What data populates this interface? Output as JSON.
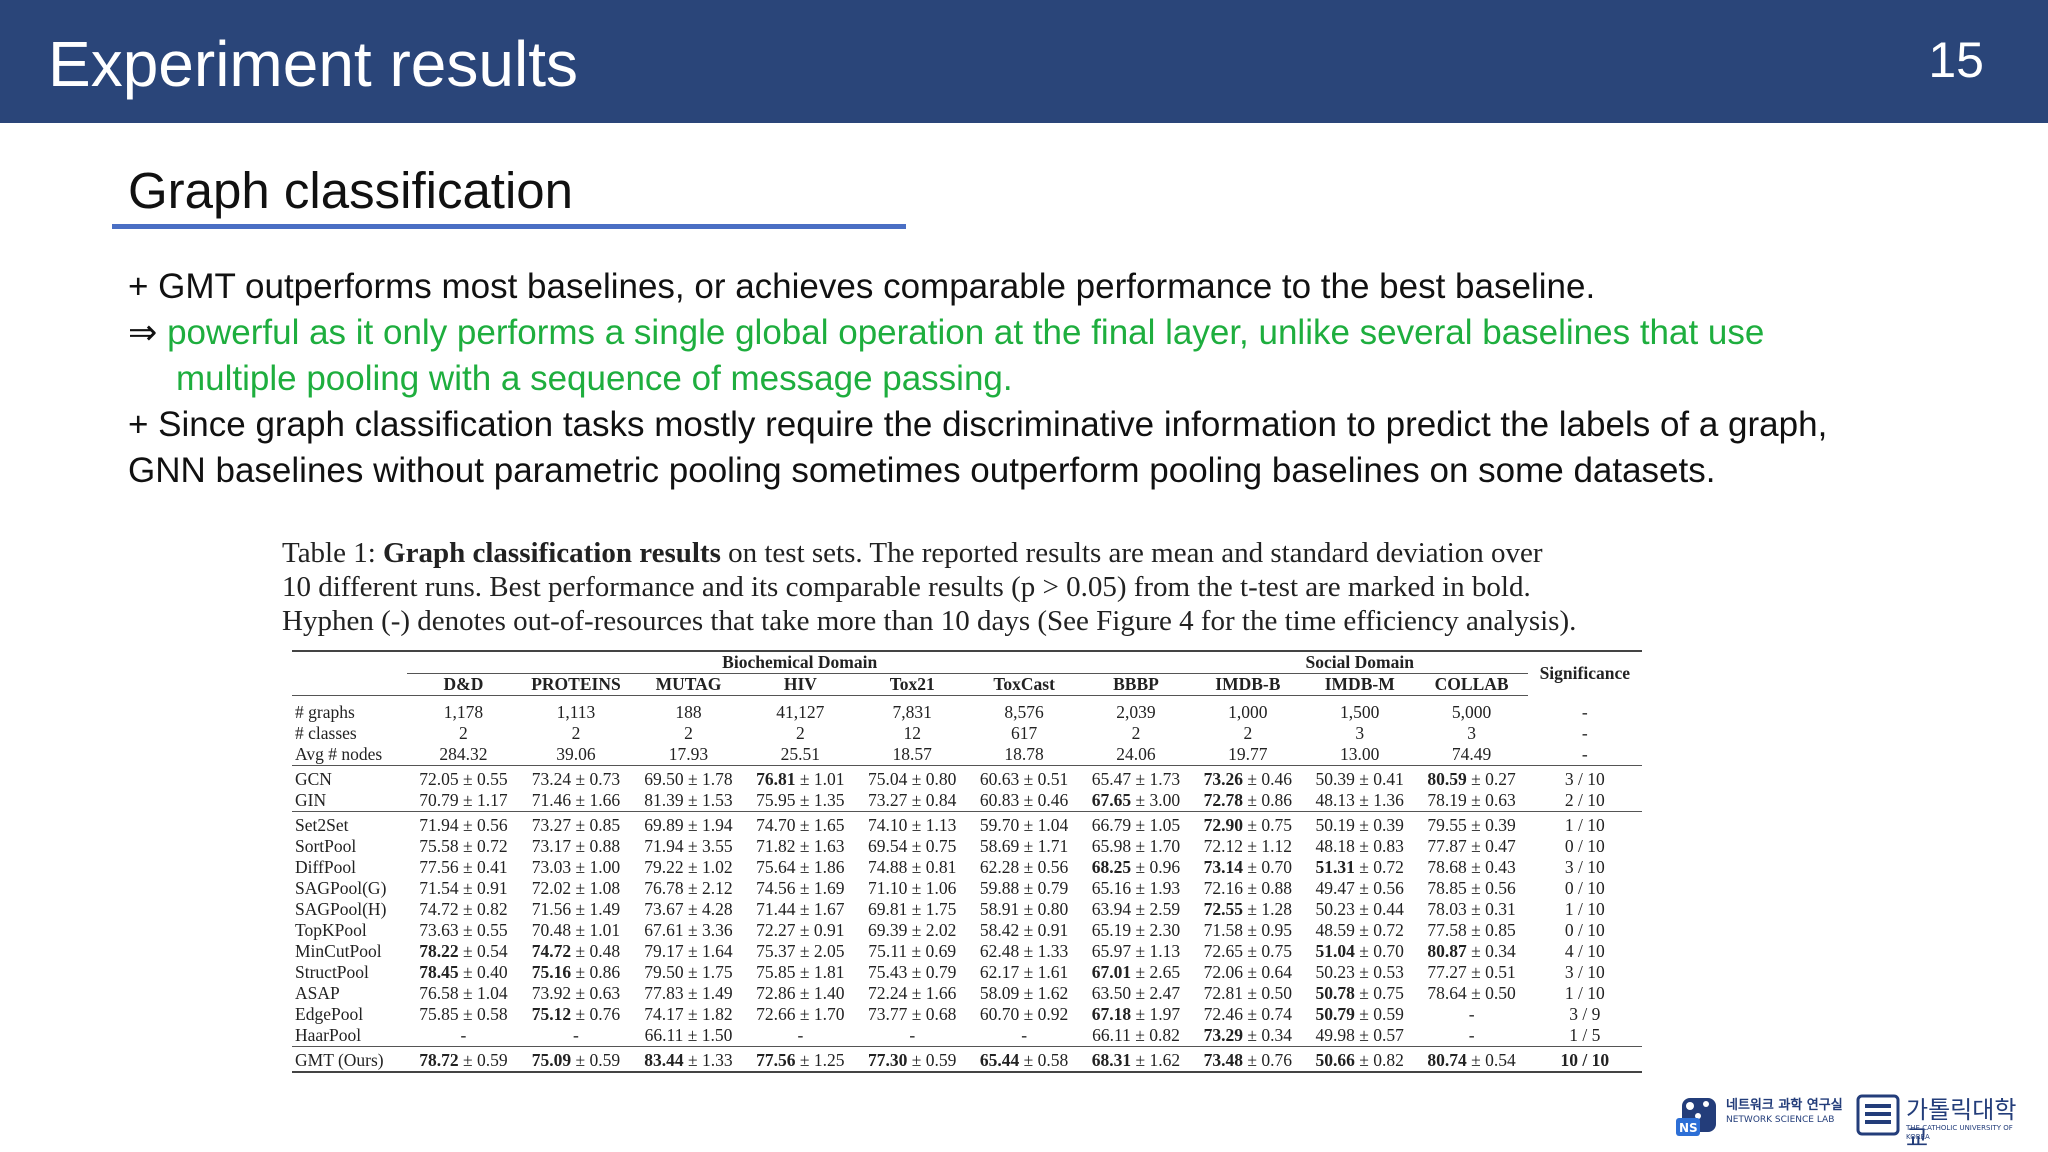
{
  "slide": {
    "title": "Experiment results",
    "page_number": "15"
  },
  "section": {
    "subtitle": "Graph classification"
  },
  "bullets": {
    "line1": "+ GMT outperforms most baselines, or achieves comparable performance to the best baseline.",
    "arrow": "⇒",
    "line2a": "powerful as it only performs a single global operation at the final layer, unlike several baselines that use",
    "line2b": "multiple pooling with a sequence of message passing.",
    "line3a": "+ Since graph classification tasks mostly require the discriminative information to predict the labels of a graph,",
    "line3b": "GNN baselines without parametric pooling sometimes outperform pooling baselines on some datasets."
  },
  "table": {
    "caption_label": "Table 1:",
    "caption_bold": "Graph classification results",
    "caption_rest1": " on test sets. The reported results are mean and standard deviation over",
    "caption_line2": "10 different runs. Best performance and its comparable results (p > 0.05) from the t-test are marked in bold.",
    "caption_line3": "Hyphen (-) denotes out-of-resources that take more than 10 days (See Figure 4 for the time efficiency analysis).",
    "group_bio": "Biochemical Domain",
    "group_social": "Social Domain",
    "significance": "Significance",
    "columns": [
      "D&D",
      "PROTEINS",
      "MUTAG",
      "HIV",
      "Tox21",
      "ToxCast",
      "BBBP",
      "IMDB-B",
      "IMDB-M",
      "COLLAB"
    ],
    "stats_rows": [
      {
        "label": "# graphs",
        "cells": [
          "1,178",
          "1,113",
          "188",
          "41,127",
          "7,831",
          "8,576",
          "2,039",
          "1,000",
          "1,500",
          "5,000"
        ],
        "sig": "-"
      },
      {
        "label": "# classes",
        "cells": [
          "2",
          "2",
          "2",
          "2",
          "12",
          "617",
          "2",
          "2",
          "3",
          "3"
        ],
        "sig": "-"
      },
      {
        "label": "Avg # nodes",
        "cells": [
          "284.32",
          "39.06",
          "17.93",
          "25.51",
          "18.57",
          "18.78",
          "24.06",
          "19.77",
          "13.00",
          "74.49"
        ],
        "sig": "-"
      }
    ],
    "gnn_rows": [
      {
        "label": "GCN",
        "cells": [
          [
            "72.05",
            "0.55",
            0
          ],
          [
            "73.24",
            "0.73",
            0
          ],
          [
            "69.50",
            "1.78",
            0
          ],
          [
            "76.81",
            "1.01",
            1
          ],
          [
            "75.04",
            "0.80",
            0
          ],
          [
            "60.63",
            "0.51",
            0
          ],
          [
            "65.47",
            "1.73",
            0
          ],
          [
            "73.26",
            "0.46",
            1
          ],
          [
            "50.39",
            "0.41",
            0
          ],
          [
            "80.59",
            "0.27",
            1
          ]
        ],
        "sig": "3 / 10"
      },
      {
        "label": "GIN",
        "cells": [
          [
            "70.79",
            "1.17",
            0
          ],
          [
            "71.46",
            "1.66",
            0
          ],
          [
            "81.39",
            "1.53",
            0
          ],
          [
            "75.95",
            "1.35",
            0
          ],
          [
            "73.27",
            "0.84",
            0
          ],
          [
            "60.83",
            "0.46",
            0
          ],
          [
            "67.65",
            "3.00",
            1
          ],
          [
            "72.78",
            "0.86",
            1
          ],
          [
            "48.13",
            "1.36",
            0
          ],
          [
            "78.19",
            "0.63",
            0
          ]
        ],
        "sig": "2 / 10"
      }
    ],
    "pool_rows": [
      {
        "label": "Set2Set",
        "cells": [
          [
            "71.94",
            "0.56",
            0
          ],
          [
            "73.27",
            "0.85",
            0
          ],
          [
            "69.89",
            "1.94",
            0
          ],
          [
            "74.70",
            "1.65",
            0
          ],
          [
            "74.10",
            "1.13",
            0
          ],
          [
            "59.70",
            "1.04",
            0
          ],
          [
            "66.79",
            "1.05",
            0
          ],
          [
            "72.90",
            "0.75",
            1
          ],
          [
            "50.19",
            "0.39",
            0
          ],
          [
            "79.55",
            "0.39",
            0
          ]
        ],
        "sig": "1 / 10"
      },
      {
        "label": "SortPool",
        "cells": [
          [
            "75.58",
            "0.72",
            0
          ],
          [
            "73.17",
            "0.88",
            0
          ],
          [
            "71.94",
            "3.55",
            0
          ],
          [
            "71.82",
            "1.63",
            0
          ],
          [
            "69.54",
            "0.75",
            0
          ],
          [
            "58.69",
            "1.71",
            0
          ],
          [
            "65.98",
            "1.70",
            0
          ],
          [
            "72.12",
            "1.12",
            0
          ],
          [
            "48.18",
            "0.83",
            0
          ],
          [
            "77.87",
            "0.47",
            0
          ]
        ],
        "sig": "0 / 10"
      },
      {
        "label": "DiffPool",
        "cells": [
          [
            "77.56",
            "0.41",
            0
          ],
          [
            "73.03",
            "1.00",
            0
          ],
          [
            "79.22",
            "1.02",
            0
          ],
          [
            "75.64",
            "1.86",
            0
          ],
          [
            "74.88",
            "0.81",
            0
          ],
          [
            "62.28",
            "0.56",
            0
          ],
          [
            "68.25",
            "0.96",
            1
          ],
          [
            "73.14",
            "0.70",
            1
          ],
          [
            "51.31",
            "0.72",
            1
          ],
          [
            "78.68",
            "0.43",
            0
          ]
        ],
        "sig": "3 / 10"
      },
      {
        "label": "SAGPool(G)",
        "cells": [
          [
            "71.54",
            "0.91",
            0
          ],
          [
            "72.02",
            "1.08",
            0
          ],
          [
            "76.78",
            "2.12",
            0
          ],
          [
            "74.56",
            "1.69",
            0
          ],
          [
            "71.10",
            "1.06",
            0
          ],
          [
            "59.88",
            "0.79",
            0
          ],
          [
            "65.16",
            "1.93",
            0
          ],
          [
            "72.16",
            "0.88",
            0
          ],
          [
            "49.47",
            "0.56",
            0
          ],
          [
            "78.85",
            "0.56",
            0
          ]
        ],
        "sig": "0 / 10"
      },
      {
        "label": "SAGPool(H)",
        "cells": [
          [
            "74.72",
            "0.82",
            0
          ],
          [
            "71.56",
            "1.49",
            0
          ],
          [
            "73.67",
            "4.28",
            0
          ],
          [
            "71.44",
            "1.67",
            0
          ],
          [
            "69.81",
            "1.75",
            0
          ],
          [
            "58.91",
            "0.80",
            0
          ],
          [
            "63.94",
            "2.59",
            0
          ],
          [
            "72.55",
            "1.28",
            1
          ],
          [
            "50.23",
            "0.44",
            0
          ],
          [
            "78.03",
            "0.31",
            0
          ]
        ],
        "sig": "1 / 10"
      },
      {
        "label": "TopKPool",
        "cells": [
          [
            "73.63",
            "0.55",
            0
          ],
          [
            "70.48",
            "1.01",
            0
          ],
          [
            "67.61",
            "3.36",
            0
          ],
          [
            "72.27",
            "0.91",
            0
          ],
          [
            "69.39",
            "2.02",
            0
          ],
          [
            "58.42",
            "0.91",
            0
          ],
          [
            "65.19",
            "2.30",
            0
          ],
          [
            "71.58",
            "0.95",
            0
          ],
          [
            "48.59",
            "0.72",
            0
          ],
          [
            "77.58",
            "0.85",
            0
          ]
        ],
        "sig": "0 / 10"
      },
      {
        "label": "MinCutPool",
        "cells": [
          [
            "78.22",
            "0.54",
            1
          ],
          [
            "74.72",
            "0.48",
            1
          ],
          [
            "79.17",
            "1.64",
            0
          ],
          [
            "75.37",
            "2.05",
            0
          ],
          [
            "75.11",
            "0.69",
            0
          ],
          [
            "62.48",
            "1.33",
            0
          ],
          [
            "65.97",
            "1.13",
            0
          ],
          [
            "72.65",
            "0.75",
            0
          ],
          [
            "51.04",
            "0.70",
            1
          ],
          [
            "80.87",
            "0.34",
            1
          ]
        ],
        "sig": "4 / 10"
      },
      {
        "label": "StructPool",
        "cells": [
          [
            "78.45",
            "0.40",
            1
          ],
          [
            "75.16",
            "0.86",
            1
          ],
          [
            "79.50",
            "1.75",
            0
          ],
          [
            "75.85",
            "1.81",
            0
          ],
          [
            "75.43",
            "0.79",
            0
          ],
          [
            "62.17",
            "1.61",
            0
          ],
          [
            "67.01",
            "2.65",
            1
          ],
          [
            "72.06",
            "0.64",
            0
          ],
          [
            "50.23",
            "0.53",
            0
          ],
          [
            "77.27",
            "0.51",
            0
          ]
        ],
        "sig": "3 / 10"
      },
      {
        "label": "ASAP",
        "cells": [
          [
            "76.58",
            "1.04",
            0
          ],
          [
            "73.92",
            "0.63",
            0
          ],
          [
            "77.83",
            "1.49",
            0
          ],
          [
            "72.86",
            "1.40",
            0
          ],
          [
            "72.24",
            "1.66",
            0
          ],
          [
            "58.09",
            "1.62",
            0
          ],
          [
            "63.50",
            "2.47",
            0
          ],
          [
            "72.81",
            "0.50",
            0
          ],
          [
            "50.78",
            "0.75",
            1
          ],
          [
            "78.64",
            "0.50",
            0
          ]
        ],
        "sig": "1 / 10"
      },
      {
        "label": "EdgePool",
        "cells": [
          [
            "75.85",
            "0.58",
            0
          ],
          [
            "75.12",
            "0.76",
            1
          ],
          [
            "74.17",
            "1.82",
            0
          ],
          [
            "72.66",
            "1.70",
            0
          ],
          [
            "73.77",
            "0.68",
            0
          ],
          [
            "60.70",
            "0.92",
            0
          ],
          [
            "67.18",
            "1.97",
            1
          ],
          [
            "72.46",
            "0.74",
            0
          ],
          [
            "50.79",
            "0.59",
            1
          ],
          [
            "-",
            "",
            0
          ]
        ],
        "sig": "3 / 9"
      },
      {
        "label": "HaarPool",
        "cells": [
          [
            "-",
            "",
            0
          ],
          [
            "-",
            "",
            0
          ],
          [
            "66.11",
            "1.50",
            0
          ],
          [
            "-",
            "",
            0
          ],
          [
            "-",
            "",
            0
          ],
          [
            "-",
            "",
            0
          ],
          [
            "66.11",
            "0.82",
            0
          ],
          [
            "73.29",
            "0.34",
            1
          ],
          [
            "49.98",
            "0.57",
            0
          ],
          [
            "-",
            "",
            0
          ]
        ],
        "sig": "1 / 5"
      }
    ],
    "ours_row": {
      "label": "GMT (Ours)",
      "cells": [
        [
          "78.72",
          "0.59",
          1
        ],
        [
          "75.09",
          "0.59",
          1
        ],
        [
          "83.44",
          "1.33",
          1
        ],
        [
          "77.56",
          "1.25",
          1
        ],
        [
          "77.30",
          "0.59",
          1
        ],
        [
          "65.44",
          "0.58",
          1
        ],
        [
          "68.31",
          "1.62",
          1
        ],
        [
          "73.48",
          "0.76",
          1
        ],
        [
          "50.66",
          "0.82",
          1
        ],
        [
          "80.74",
          "0.54",
          1
        ]
      ],
      "sig": "10 / 10"
    }
  },
  "logos": {
    "lab_name_ko": "네트워크 과학 연구실",
    "lab_name_en": "NETWORK SCIENCE LAB",
    "lab_badge": "NS",
    "univ_name_ko": "가톨릭대학교",
    "univ_name_en": "THE CATHOLIC UNIVERSITY OF KOREA"
  },
  "colors": {
    "header": "#2a4579",
    "accent_green": "#1eae3e",
    "underline": "#4a6fc4"
  }
}
